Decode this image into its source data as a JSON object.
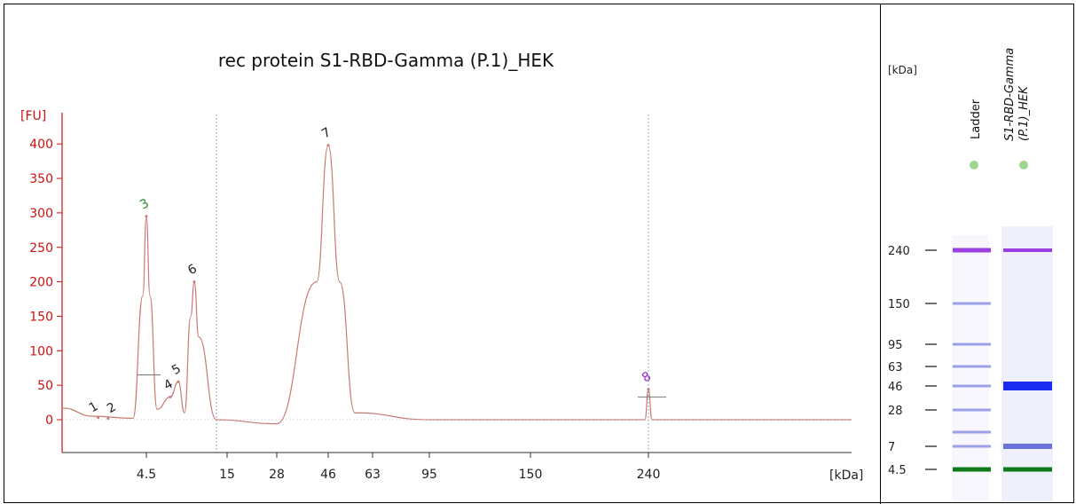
{
  "electropherogram": {
    "title": "rec protein S1-RBD-Gamma (P.1)_HEK",
    "y_unit_label": "[FU]",
    "x_unit_label": "[kDa]",
    "y_ticks": [
      "400",
      "350",
      "300",
      "250",
      "200",
      "150",
      "100",
      "50",
      "0"
    ],
    "x_ticks": [
      "4.5",
      "15",
      "28",
      "46",
      "63",
      "95",
      "150",
      "240"
    ]
  },
  "chart_data": {
    "type": "line",
    "title": "rec protein S1-RBD-Gamma (P.1)_HEK",
    "xlabel": "[kDa]",
    "ylabel": "[FU]",
    "ylim": [
      -50,
      450
    ],
    "grid": false,
    "reference_lines_kDa": [
      10.5,
      240
    ],
    "series": [
      {
        "values": [
          {
            "x": "2.0",
            "y": 17
          },
          {
            "x": "3.0",
            "y": 5
          },
          {
            "x": "3.8",
            "y": 2
          },
          {
            "x": "4.4",
            "y": 180
          },
          {
            "x": "4.5",
            "y": 295
          },
          {
            "x": "4.6",
            "y": 180
          },
          {
            "x": "4.9",
            "y": 15
          },
          {
            "x": "5.4",
            "y": 33
          },
          {
            "x": "5.7",
            "y": 55
          },
          {
            "x": "6.1",
            "y": 10
          },
          {
            "x": "6.4",
            "y": 150
          },
          {
            "x": "6.6",
            "y": 200
          },
          {
            "x": "6.9",
            "y": 120
          },
          {
            "x": "10.5",
            "y": 0
          },
          {
            "x": "28",
            "y": -6
          },
          {
            "x": "40",
            "y": 200
          },
          {
            "x": "46",
            "y": 398
          },
          {
            "x": "52",
            "y": 200
          },
          {
            "x": "60",
            "y": 10
          },
          {
            "x": "95",
            "y": 0
          },
          {
            "x": "235",
            "y": 0
          },
          {
            "x": "240",
            "y": 44
          },
          {
            "x": "245",
            "y": 0
          },
          {
            "x": "500",
            "y": 0
          }
        ]
      }
    ],
    "peaks": [
      {
        "label": "1",
        "kDa": 3.1,
        "FU": 3
      },
      {
        "label": "2",
        "kDa": 3.3,
        "FU": 2
      },
      {
        "label": "3",
        "kDa": 4.5,
        "FU": 295
      },
      {
        "label": "4",
        "kDa": 5.4,
        "FU": 33
      },
      {
        "label": "5",
        "kDa": 5.7,
        "FU": 55
      },
      {
        "label": "6",
        "kDa": 6.6,
        "FU": 200
      },
      {
        "label": "7",
        "kDa": 46,
        "FU": 398
      },
      {
        "label": "8",
        "kDa": 240,
        "FU": 44
      }
    ]
  },
  "gel": {
    "unit_label": "[kDa]",
    "lane_labels": [
      "Ladder",
      "S1-RBD-Gamma (P.1)_HEK"
    ],
    "lane_label_parts": [
      "S1-RBD-Gamma",
      "(P.1)_HEK"
    ],
    "markers": [
      "240",
      "150",
      "95",
      "63",
      "46",
      "28",
      "7",
      "4.5"
    ],
    "ladder_bands_kDa": [
      240,
      150,
      95,
      63,
      46,
      28,
      10,
      7,
      4.5
    ],
    "sample_bands_kDa": [
      240,
      46,
      7,
      4.5
    ],
    "colors": {
      "upper_marker": "#9b3fe0",
      "lower_marker": "#0e7a1a",
      "sample_band": "#1a2cf0",
      "ladder_band": "#9aa0e8",
      "well_dot": "#9ed68f"
    }
  },
  "colors": {
    "axis": "#cc1111",
    "trace": "#c87a72",
    "peak_green": "#2a8a2a",
    "peak_purple": "#9a28c8",
    "guide": "#5f8fa0"
  }
}
